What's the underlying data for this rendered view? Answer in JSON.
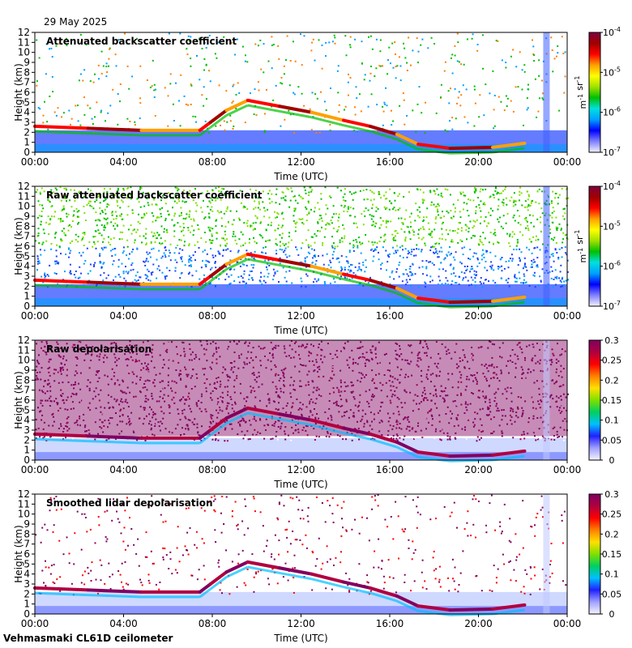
{
  "date": "29 May 2025",
  "footer": "Vehmasmaki CL61D ceilometer",
  "chart_data": [
    {
      "type": "heatmap",
      "title": "Attenuated backscatter coefficient",
      "xlabel": "Time (UTC)",
      "ylabel": "Height (km)",
      "xticks": [
        "00:00",
        "04:00",
        "08:00",
        "12:00",
        "16:00",
        "20:00",
        "00:00"
      ],
      "yticks": [
        "0",
        "1",
        "2",
        "3",
        "4",
        "5",
        "6",
        "7",
        "8",
        "9",
        "10",
        "11",
        "12"
      ],
      "ylim": [
        0,
        12
      ],
      "colorbar": {
        "scale": "log",
        "ticks": [
          "10-7",
          "10-6",
          "10-5",
          "10-4"
        ],
        "unit": "m-1 sr-1"
      }
    },
    {
      "type": "heatmap",
      "title": "Raw attenuated backscatter coefficient",
      "xlabel": "Time (UTC)",
      "ylabel": "Height (km)",
      "xticks": [
        "00:00",
        "04:00",
        "08:00",
        "12:00",
        "16:00",
        "20:00",
        "00:00"
      ],
      "yticks": [
        "0",
        "1",
        "2",
        "3",
        "4",
        "5",
        "6",
        "7",
        "8",
        "9",
        "10",
        "11",
        "12"
      ],
      "ylim": [
        0,
        12
      ],
      "colorbar": {
        "scale": "log",
        "ticks": [
          "10-7",
          "10-6",
          "10-5",
          "10-4"
        ],
        "unit": "m-1 sr-1"
      }
    },
    {
      "type": "heatmap",
      "title": "Raw depolarisation",
      "xlabel": "Time (UTC)",
      "ylabel": "Height (km)",
      "xticks": [
        "00:00",
        "04:00",
        "08:00",
        "12:00",
        "16:00",
        "20:00",
        "00:00"
      ],
      "yticks": [
        "0",
        "1",
        "2",
        "3",
        "4",
        "5",
        "6",
        "7",
        "8",
        "9",
        "10",
        "11",
        "12"
      ],
      "ylim": [
        0,
        12
      ],
      "colorbar": {
        "scale": "linear",
        "ticks": [
          "0",
          "0.05",
          "0.1",
          "0.15",
          "0.2",
          "0.25",
          "0.3"
        ],
        "unit": ""
      }
    },
    {
      "type": "heatmap",
      "title": "Smoothed lidar depolarisation",
      "xlabel": "Time (UTC)",
      "ylabel": "Height (km)",
      "xticks": [
        "00:00",
        "04:00",
        "08:00",
        "12:00",
        "16:00",
        "20:00",
        "00:00"
      ],
      "yticks": [
        "0",
        "1",
        "2",
        "3",
        "4",
        "5",
        "6",
        "7",
        "8",
        "9",
        "10",
        "11",
        "12"
      ],
      "ylim": [
        0,
        12
      ],
      "colorbar": {
        "scale": "linear",
        "ticks": [
          "0",
          "0.05",
          "0.1",
          "0.15",
          "0.2",
          "0.25",
          "0.3"
        ],
        "unit": ""
      }
    }
  ]
}
